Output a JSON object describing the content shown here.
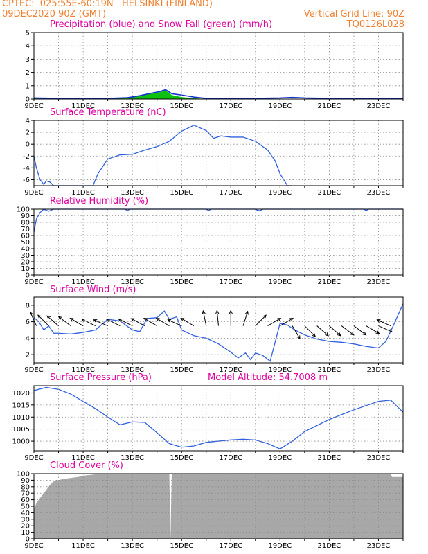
{
  "header": {
    "source_line": "CPTEC:  025:55E-60:19N   HELSINKI (FINLAND)",
    "date_line": "09DEC2020 90Z (GMT)",
    "grid_note": "Vertical Grid Line: 90Z",
    "code": "TQ0126L028"
  },
  "colors": {
    "header": "#f08030",
    "panel_title": "#e000a0",
    "precip_line": "#1030d0",
    "snow_fill": "#10c010",
    "series_line": "#3060e0",
    "cloud_fill": "#a8a8a8",
    "arrow": "#000000"
  },
  "x_tick_labels": [
    "9DEC",
    "11DEC",
    "13DEC",
    "15DEC",
    "17DEC",
    "19DEC",
    "21DEC",
    "23DEC"
  ],
  "chart_data": [
    {
      "type": "area",
      "title": "Precipitation (blue) and Snow Fall (green) (mm/h)",
      "x_range": [
        9,
        24
      ],
      "ylim": [
        0,
        5
      ],
      "yticks": [
        0,
        1,
        2,
        3,
        4,
        5
      ],
      "grid": true,
      "series": [
        {
          "name": "blue",
          "x": [
            9.0,
            10.0,
            11.0,
            12.0,
            12.8,
            13.3,
            13.8,
            14.1,
            14.35,
            14.6,
            15.0,
            15.5,
            16.0,
            17.0,
            18.0,
            19.0,
            19.5,
            20.0,
            21.0,
            22.0,
            23.0,
            24.0
          ],
          "values": [
            0.08,
            0.05,
            0.05,
            0.05,
            0.1,
            0.25,
            0.45,
            0.55,
            0.7,
            0.4,
            0.3,
            0.15,
            0.05,
            0.05,
            0.05,
            0.08,
            0.12,
            0.08,
            0.05,
            0.05,
            0.05,
            0.03
          ]
        },
        {
          "name": "green",
          "x": [
            9.0,
            10.0,
            11.0,
            12.0,
            12.8,
            13.3,
            13.8,
            14.1,
            14.35,
            14.6,
            15.0,
            15.5,
            16.0,
            17.0,
            18.0,
            19.0,
            19.5,
            20.0,
            21.0,
            22.0,
            23.0,
            24.0
          ],
          "values": [
            0.05,
            0.03,
            0.03,
            0.03,
            0.08,
            0.25,
            0.42,
            0.5,
            0.65,
            0.3,
            0.15,
            0.05,
            0.02,
            0.02,
            0.02,
            0.02,
            0.02,
            0.02,
            0.02,
            0.05,
            0.02,
            0.02
          ]
        }
      ]
    },
    {
      "type": "line",
      "title": "Surface Temperature (nC)",
      "x_range": [
        9,
        24
      ],
      "ylim": [
        -7,
        4
      ],
      "yticks": [
        -6,
        -4,
        -2,
        0,
        2,
        4
      ],
      "grid": true,
      "series": [
        {
          "x": [
            9.0,
            9.1,
            9.25,
            9.4,
            9.5,
            9.65,
            9.8,
            10.0,
            10.5,
            11.0,
            11.4,
            11.6,
            12.0,
            12.5,
            13.0,
            13.5,
            14.0,
            14.5,
            15.0,
            15.5,
            16.0,
            16.3,
            16.6,
            17.0,
            17.5,
            18.0,
            18.5,
            18.8,
            19.0,
            19.3,
            19.5
          ],
          "values": [
            -2.0,
            -4.0,
            -6.0,
            -6.8,
            -6.2,
            -6.4,
            -7.2,
            -7.5,
            -7.5,
            -7.5,
            -7.2,
            -5.0,
            -2.5,
            -1.8,
            -1.7,
            -1.0,
            -0.4,
            0.5,
            2.2,
            3.2,
            2.3,
            1.0,
            1.4,
            1.2,
            1.2,
            0.5,
            -1.0,
            -2.8,
            -5.0,
            -7.0,
            -7.5
          ]
        }
      ]
    },
    {
      "type": "line",
      "title": "Relative Humidity (%)",
      "x_range": [
        9,
        24
      ],
      "ylim": [
        0,
        100
      ],
      "yticks": [
        0,
        10,
        20,
        30,
        40,
        50,
        60,
        70,
        80,
        90,
        100
      ],
      "grid": true,
      "series": [
        {
          "x": [
            9.0,
            9.1,
            9.25,
            9.4,
            9.6,
            9.8,
            10.0,
            12.7,
            12.8,
            12.9,
            13.0,
            16.0,
            16.1,
            16.2,
            16.3,
            18.0,
            18.1,
            18.2,
            18.3,
            22.4,
            22.5,
            22.6,
            24.0
          ],
          "values": [
            65,
            85,
            95,
            100,
            97,
            100,
            100,
            100,
            98,
            100,
            100,
            100,
            98,
            100,
            100,
            100,
            98,
            98,
            100,
            100,
            98,
            100,
            100
          ]
        }
      ]
    },
    {
      "type": "line",
      "title": "Surface Wind (m/s)",
      "x_range": [
        9,
        24
      ],
      "ylim": [
        1,
        9
      ],
      "yticks": [
        2,
        4,
        6,
        8
      ],
      "grid": true,
      "series": [
        {
          "x": [
            9.0,
            9.2,
            9.4,
            9.6,
            9.8,
            10.0,
            10.5,
            11.0,
            11.5,
            12.0,
            12.5,
            13.0,
            13.3,
            13.6,
            14.0,
            14.3,
            14.5,
            14.8,
            15.0,
            15.5,
            16.0,
            16.5,
            17.0,
            17.3,
            17.6,
            17.8,
            18.0,
            18.3,
            18.6,
            19.0,
            19.3,
            19.6,
            20.0,
            20.5,
            21.0,
            21.5,
            22.0,
            22.5,
            23.0,
            23.3,
            23.6,
            24.0
          ],
          "values": [
            6.5,
            6.0,
            5.0,
            5.5,
            4.6,
            4.6,
            4.5,
            4.7,
            5.0,
            6.3,
            6.1,
            5.0,
            4.8,
            6.4,
            6.5,
            7.3,
            6.3,
            6.6,
            5.0,
            4.3,
            4.0,
            3.3,
            2.3,
            1.6,
            2.2,
            1.4,
            2.2,
            1.9,
            1.2,
            5.8,
            5.6,
            5.0,
            4.4,
            3.9,
            3.6,
            3.5,
            3.3,
            3.0,
            2.8,
            3.6,
            5.5,
            8.2
          ]
        }
      ],
      "wind_arrows": [
        {
          "x": 9.1,
          "u": -0.4,
          "v": 0.9
        },
        {
          "x": 9.6,
          "u": -0.7,
          "v": 0.7
        },
        {
          "x": 10.0,
          "u": -0.75,
          "v": 0.65
        },
        {
          "x": 10.5,
          "u": -0.8,
          "v": 0.6
        },
        {
          "x": 11.0,
          "u": -0.85,
          "v": 0.5
        },
        {
          "x": 11.5,
          "u": -0.9,
          "v": 0.45
        },
        {
          "x": 12.0,
          "u": -0.92,
          "v": 0.4
        },
        {
          "x": 12.5,
          "u": -0.9,
          "v": 0.45
        },
        {
          "x": 13.0,
          "u": -0.9,
          "v": 0.45
        },
        {
          "x": 13.5,
          "u": -0.88,
          "v": 0.48
        },
        {
          "x": 14.0,
          "u": -0.85,
          "v": 0.5
        },
        {
          "x": 14.5,
          "u": -0.85,
          "v": 0.5
        },
        {
          "x": 15.0,
          "u": -0.9,
          "v": 0.4
        },
        {
          "x": 15.5,
          "u": -0.85,
          "v": 0.5
        },
        {
          "x": 16.0,
          "u": -0.2,
          "v": 0.98
        },
        {
          "x": 16.5,
          "u": -0.1,
          "v": 1.0
        },
        {
          "x": 17.0,
          "u": 0.0,
          "v": 1.0
        },
        {
          "x": 17.5,
          "u": 0.3,
          "v": 0.95
        },
        {
          "x": 18.0,
          "u": 0.7,
          "v": 0.7
        },
        {
          "x": 18.5,
          "u": 0.85,
          "v": 0.5
        },
        {
          "x": 19.0,
          "u": 0.85,
          "v": 0.5
        },
        {
          "x": 19.5,
          "u": 0.5,
          "v": -0.85
        },
        {
          "x": 20.0,
          "u": 0.7,
          "v": -0.7
        },
        {
          "x": 20.5,
          "u": 0.75,
          "v": -0.65
        },
        {
          "x": 21.0,
          "u": 0.75,
          "v": -0.65
        },
        {
          "x": 21.5,
          "u": 0.8,
          "v": -0.6
        },
        {
          "x": 22.0,
          "u": 0.8,
          "v": -0.6
        },
        {
          "x": 22.5,
          "u": 0.85,
          "v": -0.5
        },
        {
          "x": 23.0,
          "u": 0.9,
          "v": -0.4
        },
        {
          "x": 23.5,
          "u": -0.9,
          "v": 0.4
        }
      ]
    },
    {
      "type": "line",
      "title": "Surface Pressure (hPa)",
      "annotation": "Model Altitude: 54.7008 m",
      "x_range": [
        9,
        24
      ],
      "ylim": [
        996,
        1023
      ],
      "yticks": [
        1000,
        1005,
        1010,
        1015,
        1020
      ],
      "grid": true,
      "series": [
        {
          "x": [
            9.0,
            9.5,
            10.0,
            10.5,
            11.0,
            11.5,
            12.0,
            12.5,
            13.0,
            13.5,
            14.0,
            14.5,
            15.0,
            15.5,
            16.0,
            16.5,
            17.0,
            17.5,
            18.0,
            18.5,
            19.0,
            19.5,
            20.0,
            21.0,
            22.0,
            23.0,
            23.5,
            24.0
          ],
          "values": [
            1021.0,
            1022.3,
            1021.5,
            1019.5,
            1016.5,
            1013.5,
            1010.0,
            1006.8,
            1008.0,
            1007.8,
            1003.5,
            999.0,
            997.5,
            998.0,
            999.5,
            1000.0,
            1000.5,
            1000.8,
            1000.5,
            999.0,
            996.8,
            1000.0,
            1004.0,
            1009.0,
            1013.0,
            1016.5,
            1017.0,
            1012.0
          ]
        }
      ]
    },
    {
      "type": "bar",
      "title": "Cloud Cover (%)",
      "x_range": [
        9,
        24
      ],
      "ylim": [
        0,
        100
      ],
      "yticks": [
        0,
        10,
        20,
        30,
        40,
        50,
        60,
        70,
        80,
        90,
        100
      ],
      "grid": true,
      "series": [
        {
          "x": [
            9.0,
            9.1,
            9.2,
            9.3,
            9.4,
            9.5,
            9.6,
            9.7,
            9.8,
            9.9,
            10.0,
            10.2,
            10.4,
            10.6,
            10.8,
            11.0,
            11.5,
            12.0,
            14.5,
            14.55,
            14.6,
            23.5,
            23.55,
            24.0
          ],
          "values": [
            45,
            55,
            60,
            65,
            70,
            75,
            80,
            85,
            88,
            90,
            90,
            92,
            93,
            94,
            95,
            97,
            99,
            100,
            100,
            0,
            100,
            100,
            95,
            95
          ]
        }
      ]
    }
  ]
}
